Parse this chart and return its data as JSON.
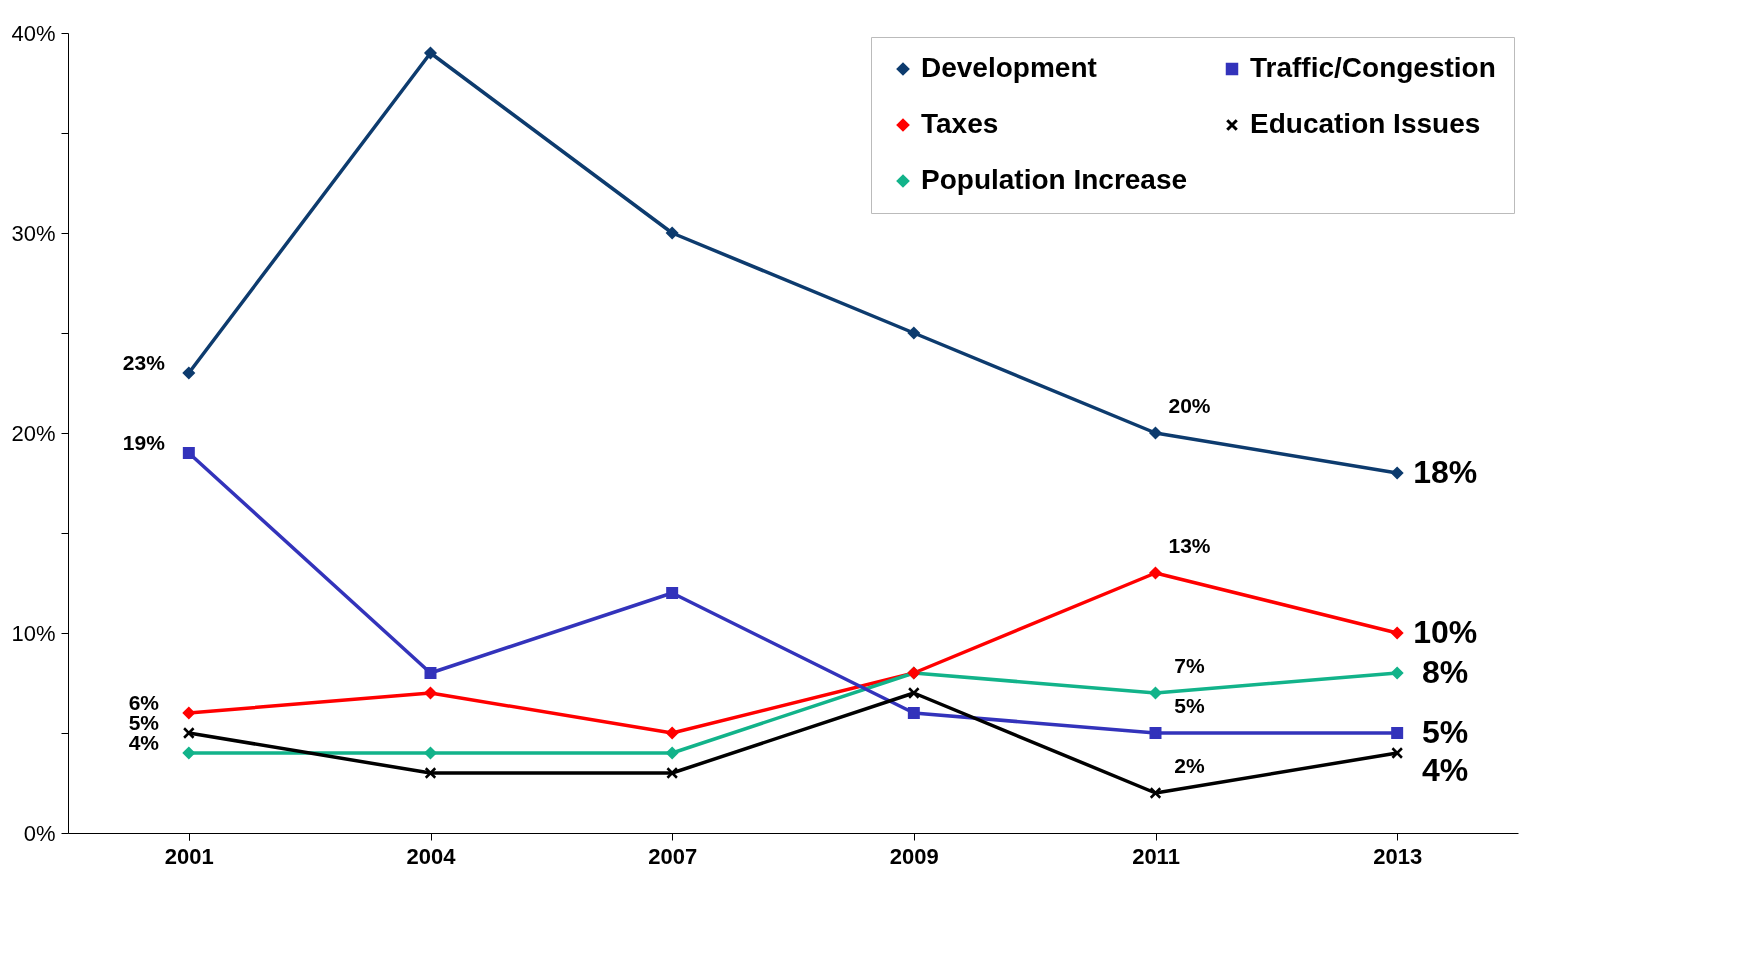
{
  "chart_data": {
    "type": "line",
    "categories": [
      "2001",
      "2004",
      "2007",
      "2009",
      "2011",
      "2013"
    ],
    "ylim": [
      0,
      40
    ],
    "yticks": [
      {
        "value": 0,
        "label": "0%"
      },
      {
        "value": 5,
        "label": null
      },
      {
        "value": 10,
        "label": "10%"
      },
      {
        "value": 15,
        "label": null
      },
      {
        "value": 20,
        "label": "20%"
      },
      {
        "value": 25,
        "label": null
      },
      {
        "value": 30,
        "label": "30%"
      },
      {
        "value": 35,
        "label": null
      },
      {
        "value": 40,
        "label": "40%"
      }
    ],
    "grid": false,
    "legend": "top right",
    "series": [
      {
        "name": "Development",
        "color": "#0d3b6e",
        "marker": "diamond",
        "values": [
          23,
          39,
          30,
          25,
          20,
          18
        ],
        "value_labels": [
          "23%",
          null,
          null,
          null,
          "20%",
          "18%"
        ]
      },
      {
        "name": "Taxes",
        "color": "#ff0000",
        "marker": "diamond",
        "values": [
          6,
          7,
          5,
          8,
          13,
          10
        ],
        "value_labels": [
          "6%",
          null,
          null,
          null,
          "13%",
          "10%"
        ]
      },
      {
        "name": "Population Increase",
        "color": "#12b38a",
        "marker": "diamond",
        "values": [
          4,
          4,
          4,
          8,
          7,
          8
        ],
        "value_labels": [
          "4%",
          null,
          null,
          null,
          "7%",
          "8%"
        ]
      },
      {
        "name": "Traffic/Congestion",
        "color": "#3333bb",
        "marker": "square",
        "values": [
          19,
          8,
          12,
          6,
          5,
          5
        ],
        "value_labels": [
          "19%",
          null,
          null,
          null,
          "5%",
          "5%"
        ]
      },
      {
        "name": "Education Issues",
        "color": "#000000",
        "marker": "cross",
        "values": [
          5,
          3,
          3,
          7,
          2,
          4
        ],
        "value_labels": [
          "5%",
          null,
          null,
          null,
          "2%",
          "4%"
        ]
      }
    ]
  }
}
